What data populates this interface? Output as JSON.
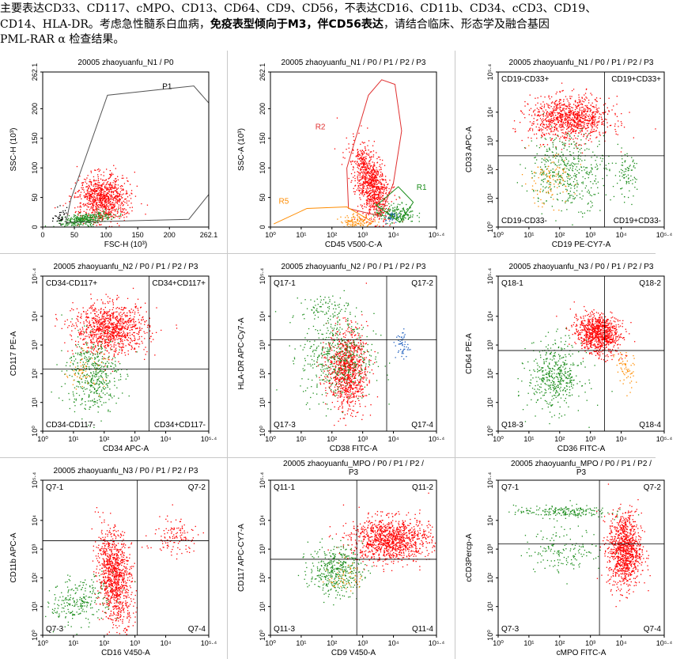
{
  "header": {
    "line1": "主要表达CD33、CD117、cMPO、CD13、CD64、CD9、CD56，不表达CD16、CD11b、CD34、cCD3、CD19、",
    "line2_a": "CD14、HLA-DR。考虑急性髓系白血病，",
    "line2_bold": "免疫表型倾向于M3，伴CD56表达",
    "line2_b": "，请结合临床、形态学及融合基因",
    "line3": "PML-RAR α 检查结果。"
  },
  "colors": {
    "red": "#ff0000",
    "green": "#1a8c1a",
    "orange": "#ff8c00",
    "blue": "#1f5fbf",
    "black": "#000000"
  },
  "chart_data": [
    {
      "type": "scatter",
      "title": "20005 zhaoyuanfu_N1 / P0",
      "xlabel": "FSC-H (10³)",
      "ylabel": "SSC-H (10³)",
      "x_scale": "linear",
      "xlim": [
        0,
        262.1
      ],
      "ylim": [
        0,
        262.1
      ],
      "x_ticks": [
        "0",
        "50",
        "100",
        "150",
        "200",
        "262.1"
      ],
      "y_ticks": [
        "0",
        "50",
        "100",
        "150",
        "200",
        "262.1"
      ],
      "gates": [
        {
          "name": "P1",
          "color": "#555555"
        }
      ],
      "quadrant_labels": []
    },
    {
      "type": "scatter",
      "title": "20005 zhaoyuanfu_N1 / P0 / P1 / P2 / P3",
      "xlabel": "CD45  V500-C-A",
      "ylabel": "SSC-A (10³)",
      "x_scale": "log",
      "xlim": [
        0,
        5.4
      ],
      "ylim": [
        0,
        262.1
      ],
      "x_ticks": [
        "10⁰",
        "10¹",
        "10²",
        "10³",
        "10⁴",
        "10⁵·⁴"
      ],
      "y_ticks": [
        "0",
        "50",
        "100",
        "150",
        "200",
        "262.1"
      ],
      "gates": [
        {
          "name": "R2",
          "color": "#e03030"
        },
        {
          "name": "R1",
          "color": "#1a8c1a"
        },
        {
          "name": "R5",
          "color": "#ff8c00"
        }
      ],
      "quadrant_labels": []
    },
    {
      "type": "scatter",
      "title": "20005 zhaoyuanfu_N1 / P0 / P1 / P2 / P3",
      "xlabel": "CD19  PE-CY7-A",
      "ylabel": "CD33  APC-A",
      "x_scale": "log",
      "xlim": [
        0,
        5.4
      ],
      "ylim": [
        0,
        5.4
      ],
      "x_ticks": [
        "10⁰",
        "10¹",
        "10²",
        "10³",
        "10⁴",
        "10⁵·⁴"
      ],
      "y_ticks": [
        "10⁰",
        "10¹",
        "10²",
        "10³",
        "10⁴",
        "10⁵·⁴"
      ],
      "quadrant_labels": [
        "CD19-CD33+",
        "CD19+CD33+",
        "CD19-CD33-",
        "CD19+CD33-"
      ]
    },
    {
      "type": "scatter",
      "title": "20005 zhaoyuanfu_N2 / P0 / P1 / P2 / P3",
      "xlabel": "CD34  APC-A",
      "ylabel": "CD117  PE-A",
      "x_scale": "log",
      "xlim": [
        0,
        5.4
      ],
      "ylim": [
        0,
        5.4
      ],
      "x_ticks": [
        "10⁰",
        "10¹",
        "10²",
        "10³",
        "10⁴",
        "10⁵·⁴"
      ],
      "y_ticks": [
        "10⁰",
        "10¹",
        "10²",
        "10³",
        "10⁴",
        "10⁵·⁴"
      ],
      "quadrant_labels": [
        "CD34-CD117+",
        "CD34+CD117+",
        "CD34-CD117-",
        "CD34+CD117-"
      ]
    },
    {
      "type": "scatter",
      "title": "20005 zhaoyuanfu_N2 / P0 / P1 / P2 / P3",
      "xlabel": "CD38  FITC-A",
      "ylabel": "HLA-DR  APC-Cy7-A",
      "x_scale": "log",
      "xlim": [
        0,
        5.4
      ],
      "ylim": [
        0,
        5.4
      ],
      "x_ticks": [
        "10⁰",
        "10¹",
        "10²",
        "10³",
        "10⁴",
        "10⁵·⁴"
      ],
      "y_ticks": [
        "10⁰",
        "10¹",
        "10²",
        "10³",
        "10⁴",
        "10⁵·⁴"
      ],
      "quadrant_labels": [
        "Q17-1",
        "Q17-2",
        "Q17-3",
        "Q17-4"
      ]
    },
    {
      "type": "scatter",
      "title": "20005 zhaoyuanfu_N3 / P0 / P1 / P2 / P3",
      "xlabel": "CD36  FITC-A",
      "ylabel": "CD64  PE-A",
      "x_scale": "log",
      "xlim": [
        0,
        5.4
      ],
      "ylim": [
        0,
        5.4
      ],
      "x_ticks": [
        "10⁰",
        "10¹",
        "10²",
        "10³",
        "10⁴",
        "10⁵·⁴"
      ],
      "y_ticks": [
        "10⁰",
        "10¹",
        "10²",
        "10³",
        "10⁴",
        "10⁵·⁴"
      ],
      "quadrant_labels": [
        "Q18-1",
        "Q18-2",
        "Q18-3",
        "Q18-4"
      ]
    },
    {
      "type": "scatter",
      "title": "20005 zhaoyuanfu_N3 / P0 / P1 / P2 / P3",
      "xlabel": "CD16  V450-A",
      "ylabel": "CD11b  APC-A",
      "x_scale": "log",
      "xlim": [
        0,
        5.4
      ],
      "ylim": [
        0,
        5.4
      ],
      "x_ticks": [
        "10⁰",
        "10¹",
        "10²",
        "10³",
        "10⁴",
        "10⁵·⁴"
      ],
      "y_ticks": [
        "10⁰",
        "10¹",
        "10²",
        "10³",
        "10⁴",
        "10⁵·⁴"
      ],
      "quadrant_labels": [
        "Q7-1",
        "Q7-2",
        "Q7-3",
        "Q7-4"
      ]
    },
    {
      "type": "scatter",
      "title": "20005 zhaoyuanfu_MPO / P0 / P1 / P2 /",
      "title2": "P3",
      "xlabel": "CD9  V450-A",
      "ylabel": "CD117  APC-CY7-A",
      "x_scale": "log",
      "xlim": [
        0,
        5.4
      ],
      "ylim": [
        0,
        5.4
      ],
      "x_ticks": [
        "10⁰",
        "10¹",
        "10²",
        "10³",
        "10⁴",
        "10⁵·⁴"
      ],
      "y_ticks": [
        "10⁰",
        "10¹",
        "10²",
        "10³",
        "10⁴",
        "10⁵·⁴"
      ],
      "quadrant_labels": [
        "Q11-1",
        "Q11-2",
        "Q11-3",
        "Q11-4"
      ]
    },
    {
      "type": "scatter",
      "title": "20005 zhaoyuanfu_MPO / P0 / P1 / P2 /",
      "title2": "P3",
      "xlabel": "cMPO  FITC-A",
      "ylabel": "cCD3Percp-A",
      "x_scale": "log",
      "xlim": [
        0,
        5.4
      ],
      "ylim": [
        0,
        5.4
      ],
      "x_ticks": [
        "10⁰",
        "10¹",
        "10²",
        "10³",
        "10⁴",
        "10⁵·⁴"
      ],
      "y_ticks": [
        "10⁰",
        "10¹",
        "10²",
        "10³",
        "10⁴",
        "10⁵·⁴"
      ],
      "quadrant_labels": [
        "Q7-1",
        "Q7-2",
        "Q7-3",
        "Q7-4"
      ]
    }
  ]
}
